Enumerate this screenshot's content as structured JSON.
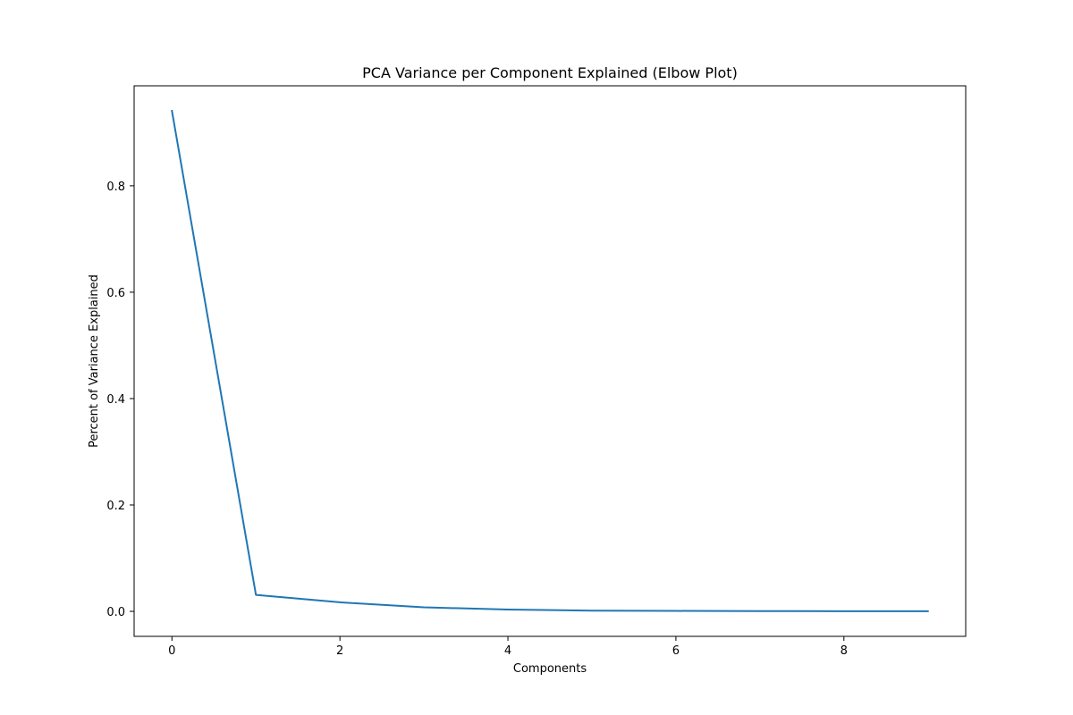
{
  "chart_data": {
    "type": "line",
    "title": "PCA Variance per Component Explained (Elbow Plot)",
    "xlabel": "Components",
    "ylabel": "Percent of Variance Explained",
    "x": [
      0,
      1,
      2,
      3,
      4,
      5,
      6,
      7,
      8,
      9
    ],
    "series": [
      {
        "values": [
          0.941,
          0.031,
          0.017,
          0.0075,
          0.0035,
          0.0012,
          0.0008,
          0.0005,
          0.0003,
          0.0002
        ],
        "color": "#1f77b4"
      }
    ],
    "xlim": [
      -0.45,
      9.45
    ],
    "ylim": [
      -0.047,
      0.988
    ],
    "xticks": [
      0,
      2,
      4,
      6,
      8
    ],
    "xtick_labels": [
      "0",
      "2",
      "4",
      "6",
      "8"
    ],
    "yticks": [
      0.0,
      0.2,
      0.4,
      0.6,
      0.8
    ],
    "ytick_labels": [
      "0.0",
      "0.2",
      "0.4",
      "0.6",
      "0.8"
    ],
    "grid": false,
    "legend": "none"
  }
}
